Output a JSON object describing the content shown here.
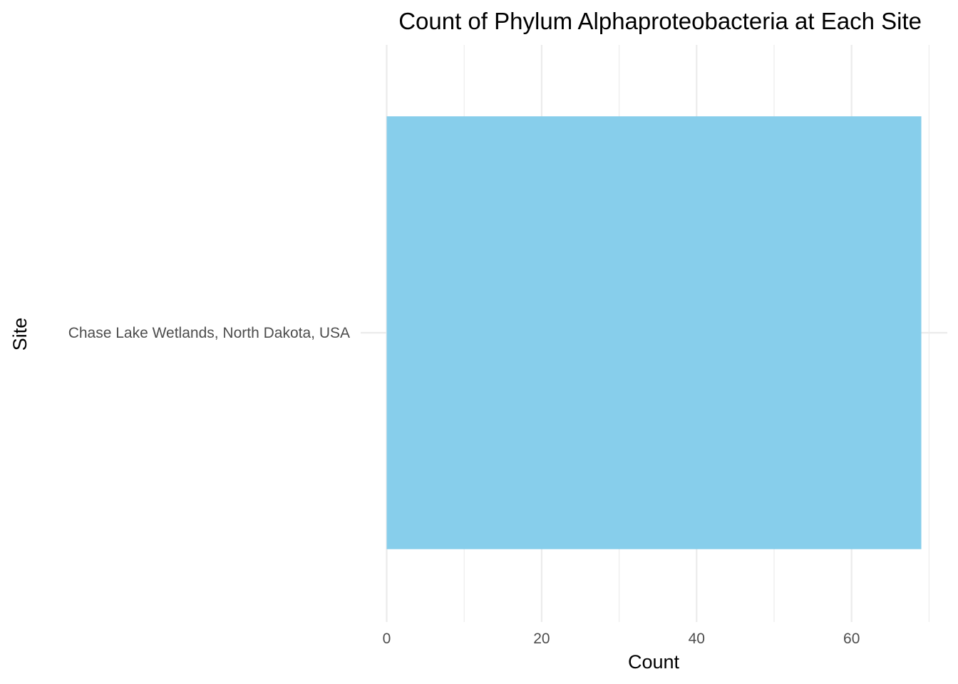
{
  "chart_data": {
    "type": "bar",
    "orientation": "horizontal",
    "title": "Count of Phylum Alphaproteobacteria at Each Site",
    "xlabel": "Count",
    "ylabel": "Site",
    "categories": [
      "Chase Lake Wetlands, North Dakota, USA"
    ],
    "values": [
      69
    ],
    "xlim": [
      0,
      70
    ],
    "x_ticks": [
      0,
      20,
      40,
      60
    ],
    "x_tick_labels": [
      "0",
      "20",
      "40",
      "60"
    ],
    "grid": true,
    "legend": "none",
    "bar_color": "#87CEEB"
  }
}
